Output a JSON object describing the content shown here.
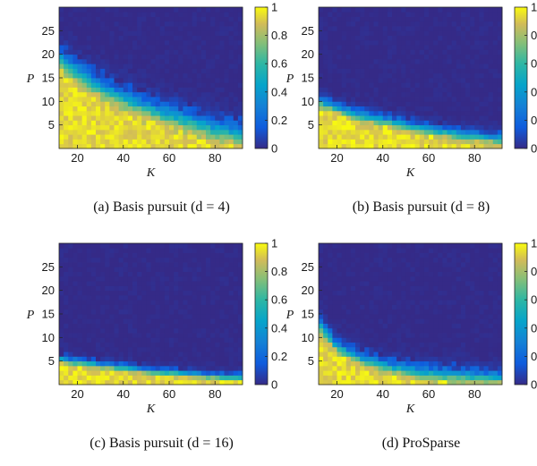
{
  "panels_colorscale": {
    "min": 0,
    "max": 1,
    "ticks": [
      "0",
      "0.2",
      "0.4",
      "0.6",
      "0.8",
      "1"
    ]
  },
  "colors": {
    "low": "#352a87",
    "mid": "#16b9b0",
    "high": "#f9fb0e"
  },
  "chart_data": [
    {
      "type": "heatmap",
      "caption": "(a) Basis pursuit (d = 4)",
      "xlabel": "K",
      "ylabel": "P",
      "xlim": [
        12,
        92
      ],
      "ylim": [
        0,
        30
      ],
      "xticks": [
        "20",
        "40",
        "60",
        "80"
      ],
      "yticks": [
        "5",
        "10",
        "15",
        "20",
        "25"
      ],
      "colorbar_ticks": [
        "0",
        "0.2",
        "0.4",
        "0.6",
        "0.8",
        "1"
      ],
      "boundary_K": [
        12,
        20,
        30,
        40,
        50,
        60,
        70,
        80,
        90
      ],
      "boundary_P": [
        19,
        16,
        13,
        10.5,
        8.5,
        7,
        5.5,
        4,
        3
      ],
      "transition_width_P": 3
    },
    {
      "type": "heatmap",
      "caption": "(b) Basis pursuit (d = 8)",
      "xlabel": "K",
      "ylabel": "P",
      "xlim": [
        12,
        92
      ],
      "ylim": [
        0,
        30
      ],
      "xticks": [
        "20",
        "40",
        "60",
        "80"
      ],
      "yticks": [
        "5",
        "10",
        "15",
        "20",
        "25"
      ],
      "colorbar_ticks": [
        "0",
        "0.2",
        "0.4",
        "0.6",
        "0.8",
        "1"
      ],
      "boundary_K": [
        12,
        20,
        30,
        40,
        50,
        60,
        70,
        80,
        90
      ],
      "boundary_P": [
        10,
        8.5,
        7,
        6,
        5,
        4,
        3.3,
        2.5,
        2
      ],
      "transition_width_P": 1.5
    },
    {
      "type": "heatmap",
      "caption": "(c) Basis pursuit (d = 16)",
      "xlabel": "K",
      "ylabel": "P",
      "xlim": [
        12,
        92
      ],
      "ylim": [
        0,
        30
      ],
      "xticks": [
        "20",
        "40",
        "60",
        "80"
      ],
      "yticks": [
        "5",
        "10",
        "15",
        "20",
        "25"
      ],
      "colorbar_ticks": [
        "0",
        "0.2",
        "0.4",
        "0.6",
        "0.8",
        "1"
      ],
      "boundary_K": [
        12,
        20,
        30,
        40,
        50,
        60,
        70,
        80,
        90
      ],
      "boundary_P": [
        5.5,
        4.8,
        4.2,
        3.6,
        3,
        2.6,
        2.2,
        1.8,
        1.5
      ],
      "transition_width_P": 1
    },
    {
      "type": "heatmap",
      "caption": "(d) ProSparse",
      "xlabel": "K",
      "ylabel": "P",
      "xlim": [
        12,
        92
      ],
      "ylim": [
        0,
        30
      ],
      "xticks": [
        "20",
        "40",
        "60",
        "80"
      ],
      "yticks": [
        "5",
        "10",
        "15",
        "20",
        "25"
      ],
      "colorbar_ticks": [
        "0",
        "0.2",
        "0.4",
        "0.6",
        "0.8",
        "1"
      ],
      "boundary_K": [
        12,
        20,
        30,
        40,
        50,
        60,
        70,
        80,
        90
      ],
      "boundary_P": [
        13,
        8,
        5.5,
        4,
        3.2,
        2.5,
        2,
        1.7,
        1.5
      ],
      "transition_width_P": 2
    }
  ]
}
